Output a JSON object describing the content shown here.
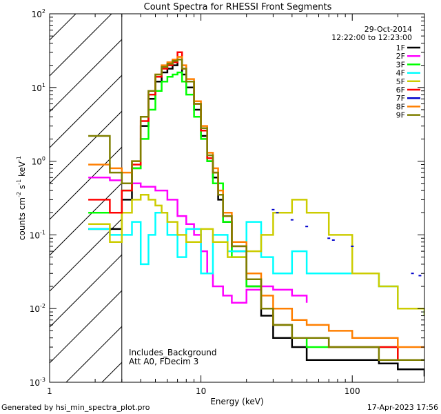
{
  "chart_data": {
    "type": "line",
    "title": "Count Spectra for RHESSI Front Segments",
    "xlabel": "Energy (keV)",
    "ylabel_parts": [
      "counts cm",
      "-2",
      " s",
      "-1",
      " keV",
      "-1"
    ],
    "xscale": "log",
    "yscale": "log",
    "xlim": [
      1,
      300
    ],
    "ylim": [
      0.001,
      100
    ],
    "x_ticks": [
      {
        "value": 1,
        "label": "1"
      },
      {
        "value": 10,
        "label": "10"
      },
      {
        "value": 100,
        "label": "100"
      }
    ],
    "y_ticks": [
      {
        "value": 0.001,
        "base": "10",
        "exp": "-3"
      },
      {
        "value": 0.01,
        "base": "10",
        "exp": "-2"
      },
      {
        "value": 0.1,
        "base": "10",
        "exp": "-1"
      },
      {
        "value": 1,
        "base": "10",
        "exp": "0"
      },
      {
        "value": 10,
        "base": "10",
        "exp": "1"
      },
      {
        "value": 100,
        "base": "10",
        "exp": "2"
      }
    ],
    "hatched_region_keV": [
      1,
      3
    ],
    "date": "29-Oct-2014",
    "time_range": "12:22:00 to 12:23:00",
    "annotations": [
      "Includes_Background",
      "Att A0, FDecim 3"
    ],
    "series": [
      {
        "name": "1F",
        "color": "#000000",
        "x": [
          1.8,
          2.5,
          2.8,
          3.0,
          3.5,
          4.0,
          4.5,
          5.0,
          5.5,
          6.0,
          6.5,
          7.0,
          7.5,
          8.0,
          9.0,
          10.0,
          11.0,
          12.0,
          13.0,
          14.0,
          16.0,
          20.0,
          25.0,
          30.0,
          40.0,
          50.0,
          70.0,
          100.0,
          150.0,
          200.0,
          300.0
        ],
        "y": [
          0.12,
          0.12,
          0.12,
          0.3,
          0.8,
          3.0,
          7.0,
          12.0,
          16.0,
          18.0,
          20.0,
          24.0,
          15.0,
          10.0,
          5.0,
          2.2,
          1.0,
          0.6,
          0.3,
          0.15,
          0.06,
          0.02,
          0.008,
          0.004,
          0.003,
          0.002,
          0.002,
          0.002,
          0.0018,
          0.0015,
          0.0012
        ]
      },
      {
        "name": "2F",
        "color": "#ff00ff",
        "x": [
          1.8,
          2.5,
          3.0,
          4.0,
          5.0,
          6.0,
          7.0,
          8.0,
          9.0,
          10.0,
          11.0,
          12.0,
          14.0,
          16.0,
          20.0,
          25.0,
          30.0,
          40.0,
          50.0
        ],
        "y": [
          0.6,
          0.55,
          0.5,
          0.45,
          0.4,
          0.3,
          0.18,
          0.14,
          0.1,
          0.06,
          0.03,
          0.02,
          0.015,
          0.012,
          0.018,
          0.02,
          0.018,
          0.015,
          0.012
        ]
      },
      {
        "name": "3F",
        "color": "#00ff00",
        "x": [
          1.8,
          2.5,
          3.0,
          3.5,
          4.0,
          4.5,
          5.0,
          5.5,
          6.0,
          6.5,
          7.0,
          7.5,
          8.0,
          9.0,
          10.0,
          11.0,
          12.0,
          14.0,
          16.0,
          20.0,
          25.0,
          30.0,
          40.0,
          50.0,
          70.0,
          100.0,
          150.0,
          200.0,
          300.0
        ],
        "y": [
          0.2,
          0.2,
          0.4,
          0.8,
          2.0,
          5.0,
          9.0,
          12.0,
          14.0,
          15.0,
          16.0,
          12.0,
          8.0,
          4.0,
          2.0,
          1.0,
          0.5,
          0.15,
          0.05,
          0.02,
          0.01,
          0.006,
          0.004,
          0.003,
          0.003,
          0.003,
          0.003,
          0.002,
          0.002
        ]
      },
      {
        "name": "4F",
        "color": "#00ffff",
        "x": [
          1.8,
          2.5,
          3.0,
          3.5,
          4.0,
          4.5,
          5.0,
          6.0,
          7.0,
          8.0,
          10.0,
          12.0,
          15.0,
          20.0,
          25.0,
          30.0,
          40.0,
          50.0,
          70.0,
          100.0,
          150.0,
          200.0,
          300.0
        ],
        "y": [
          0.12,
          0.1,
          0.1,
          0.15,
          0.04,
          0.1,
          0.2,
          0.1,
          0.05,
          0.12,
          0.03,
          0.1,
          0.06,
          0.15,
          0.05,
          0.03,
          0.06,
          0.03,
          0.03,
          0.03,
          0.02,
          0.01,
          0.008
        ]
      },
      {
        "name": "5F",
        "color": "#cccc00",
        "x": [
          1.8,
          2.5,
          3.0,
          3.5,
          4.0,
          4.5,
          5.0,
          5.5,
          6.0,
          7.0,
          8.0,
          10.0,
          12.0,
          15.0,
          20.0,
          25.0,
          30.0,
          40.0,
          50.0,
          70.0,
          100.0,
          150.0,
          200.0,
          300.0
        ],
        "y": [
          0.14,
          0.08,
          0.2,
          0.3,
          0.35,
          0.3,
          0.25,
          0.2,
          0.15,
          0.1,
          0.08,
          0.12,
          0.08,
          0.05,
          0.06,
          0.1,
          0.2,
          0.3,
          0.2,
          0.1,
          0.03,
          0.02,
          0.01,
          0.008
        ]
      },
      {
        "name": "6F",
        "color": "#ff0000",
        "x": [
          1.8,
          2.5,
          3.0,
          3.5,
          4.0,
          4.5,
          5.0,
          5.5,
          6.0,
          6.5,
          7.0,
          7.5,
          8.0,
          9.0,
          10.0,
          11.0,
          12.0,
          13.0,
          14.0,
          16.0,
          20.0,
          25.0,
          30.0,
          40.0,
          50.0,
          70.0,
          100.0,
          150.0,
          200.0,
          300.0
        ],
        "y": [
          0.3,
          0.2,
          0.4,
          0.9,
          3.5,
          8.0,
          14.0,
          18.0,
          20.0,
          22.0,
          30.0,
          18.0,
          12.0,
          6.0,
          2.6,
          1.1,
          0.7,
          0.35,
          0.18,
          0.07,
          0.025,
          0.01,
          0.006,
          0.004,
          0.004,
          0.003,
          0.003,
          0.003,
          0.002,
          0.002
        ]
      },
      {
        "name": "7F",
        "color": "#0000cc",
        "x": [
          30.0,
          32.0,
          40.0,
          50.0,
          70.0,
          75.0,
          100.0,
          250.0,
          280.0
        ],
        "y": [
          0.22,
          0.2,
          0.16,
          0.13,
          0.09,
          0.085,
          0.07,
          0.03,
          0.028
        ]
      },
      {
        "name": "8F",
        "color": "#ff7f00",
        "x": [
          1.8,
          2.5,
          3.0,
          3.5,
          4.0,
          4.5,
          5.0,
          5.5,
          6.0,
          6.5,
          7.0,
          7.5,
          8.0,
          9.0,
          10.0,
          11.0,
          12.0,
          13.0,
          14.0,
          16.0,
          20.0,
          25.0,
          30.0,
          40.0,
          50.0,
          70.0,
          100.0,
          150.0,
          200.0,
          300.0
        ],
        "y": [
          0.9,
          0.8,
          0.7,
          1.0,
          4.0,
          9.0,
          15.0,
          20.0,
          22.0,
          24.0,
          26.0,
          20.0,
          13.0,
          6.5,
          3.0,
          1.3,
          0.8,
          0.4,
          0.2,
          0.08,
          0.03,
          0.015,
          0.01,
          0.007,
          0.006,
          0.005,
          0.004,
          0.004,
          0.003,
          0.003
        ]
      },
      {
        "name": "9F",
        "color": "#7f7f00",
        "x": [
          1.8,
          2.5,
          3.0,
          3.5,
          4.0,
          4.5,
          5.0,
          5.5,
          6.0,
          6.5,
          7.0,
          7.5,
          8.0,
          9.0,
          10.0,
          11.0,
          12.0,
          13.0,
          14.0,
          16.0,
          20.0,
          25.0,
          30.0,
          40.0,
          50.0,
          70.0,
          100.0,
          150.0,
          200.0,
          300.0
        ],
        "y": [
          2.2,
          0.7,
          0.5,
          1.0,
          4.0,
          9.0,
          15.0,
          19.0,
          21.0,
          23.0,
          24.0,
          18.0,
          12.0,
          6.0,
          2.8,
          1.2,
          0.7,
          0.35,
          0.18,
          0.07,
          0.025,
          0.01,
          0.006,
          0.004,
          0.004,
          0.003,
          0.003,
          0.002,
          0.002,
          0.002
        ]
      }
    ]
  },
  "footer": {
    "generated_by": "Generated by hsi_min_spectra_plot.pro",
    "timestamp": "17-Apr-2023 17:56"
  }
}
